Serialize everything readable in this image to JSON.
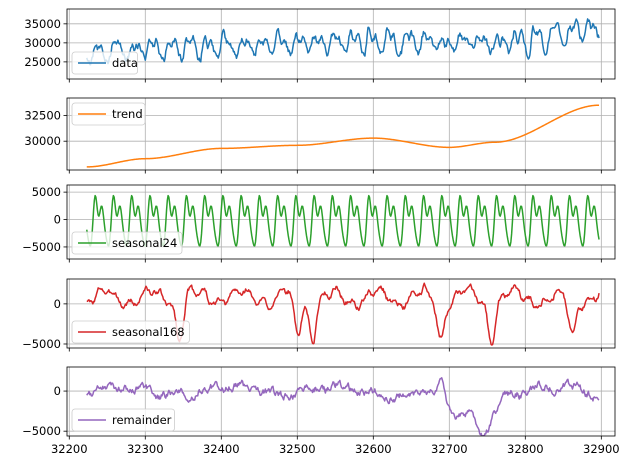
{
  "chart_data": [
    {
      "type": "line",
      "series": [
        {
          "name": "data",
          "color": "#1f77b4"
        }
      ],
      "x_range": [
        32223,
        32897
      ],
      "ylim": [
        20500,
        38900
      ],
      "yticks": [
        25000,
        30000,
        35000
      ],
      "ytick_labels": [
        "25000",
        "30000",
        "35000"
      ],
      "generator": {
        "kind": "seasonal_sum",
        "trend": [
          [
            32223,
            27500
          ],
          [
            32300,
            28300
          ],
          [
            32400,
            29300
          ],
          [
            32500,
            29600
          ],
          [
            32600,
            30300
          ],
          [
            32700,
            29400
          ],
          [
            32760,
            29900
          ],
          [
            32897,
            33500
          ]
        ],
        "amplitude": 3800,
        "noise": 1600,
        "seed": 1
      },
      "legend_position": "lower-left",
      "grid": true
    },
    {
      "type": "line",
      "series": [
        {
          "name": "trend",
          "color": "#ff7f0e"
        }
      ],
      "x_range": [
        32223,
        32897
      ],
      "ylim": [
        27200,
        34200
      ],
      "yticks": [
        30000,
        32500
      ],
      "ytick_labels": [
        "30000",
        "32500"
      ],
      "generator": {
        "kind": "trend",
        "trend": [
          [
            32223,
            27500
          ],
          [
            32300,
            28300
          ],
          [
            32400,
            29300
          ],
          [
            32500,
            29600
          ],
          [
            32600,
            30300
          ],
          [
            32700,
            29400
          ],
          [
            32760,
            29900
          ],
          [
            32897,
            33500
          ]
        ]
      },
      "legend_position": "upper-left",
      "grid": true
    },
    {
      "type": "line",
      "series": [
        {
          "name": "seasonal24",
          "color": "#2ca02c"
        }
      ],
      "x_range": [
        32223,
        32897
      ],
      "ylim": [
        -7200,
        6300
      ],
      "yticks": [
        -5000,
        0,
        5000
      ],
      "ytick_labels": [
        "−5000",
        "0",
        "5000"
      ],
      "generator": {
        "kind": "daily",
        "amplitude": 5200,
        "seed": 2
      },
      "legend_position": "lower-left",
      "grid": true
    },
    {
      "type": "line",
      "series": [
        {
          "name": "seasonal168",
          "color": "#d62728"
        }
      ],
      "x_range": [
        32223,
        32897
      ],
      "ylim": [
        -5500,
        3100
      ],
      "yticks": [
        -5000,
        0
      ],
      "ytick_labels": [
        "−5000",
        "0"
      ],
      "generator": {
        "kind": "weekly",
        "dips": [
          32345,
          32500,
          32520,
          32688,
          32755,
          32862
        ],
        "seed": 3
      },
      "legend_position": "lower-left",
      "grid": true
    },
    {
      "type": "line",
      "series": [
        {
          "name": "remainder",
          "color": "#9467bd"
        }
      ],
      "x_range": [
        32223,
        32897
      ],
      "ylim": [
        -5600,
        3000
      ],
      "yticks": [
        -5000,
        0
      ],
      "ytick_labels": [
        "−5000",
        "0"
      ],
      "xticks": [
        32200,
        32300,
        32400,
        32500,
        32600,
        32700,
        32800,
        32900
      ],
      "xtick_labels": [
        "32200",
        "32300",
        "32400",
        "32500",
        "32600",
        "32700",
        "32800",
        "32900"
      ],
      "generator": {
        "kind": "remainder",
        "dip": [
          [
            32690,
            0
          ],
          [
            32705,
            -4000
          ],
          [
            32722,
            -3000
          ],
          [
            32745,
            -5200
          ],
          [
            32762,
            -1500
          ],
          [
            32775,
            0
          ]
        ],
        "noise": 700,
        "seed": 4
      },
      "legend_position": "lower-left",
      "grid": true
    }
  ]
}
